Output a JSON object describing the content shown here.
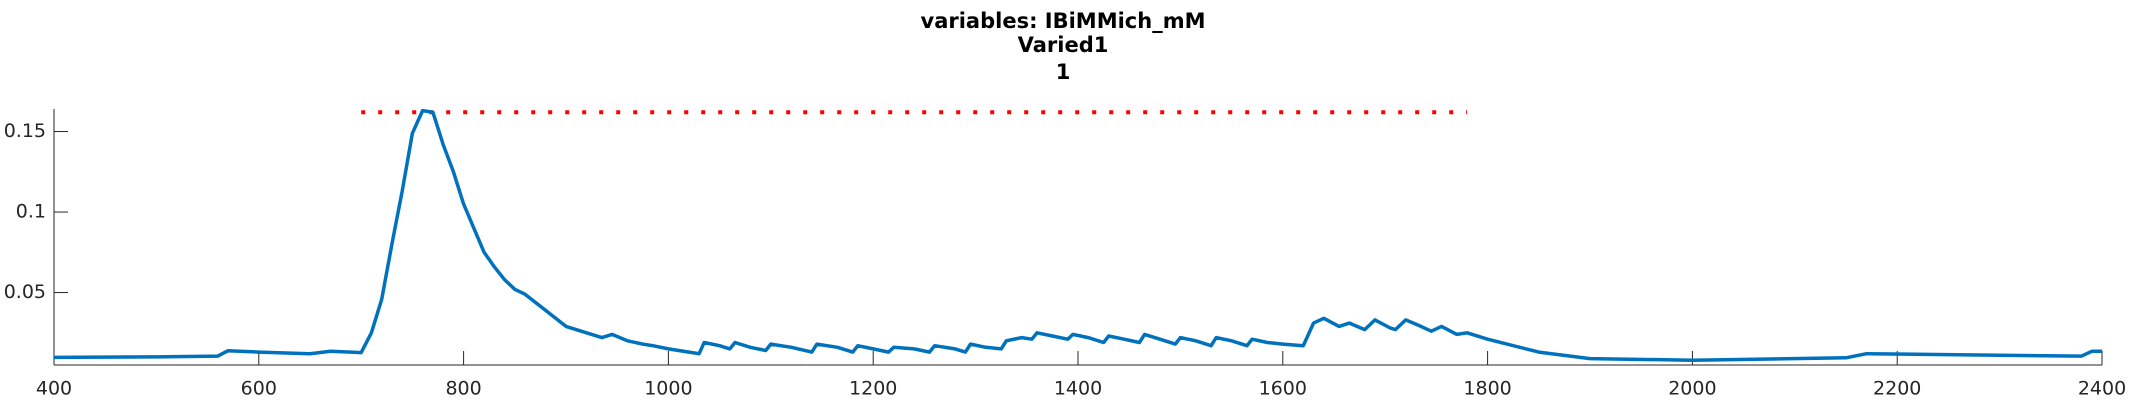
{
  "chart_data": {
    "type": "line",
    "title": "variables: IBiMMich_mM",
    "subtitle": "Varied1",
    "subtitle2": "1",
    "x": [
      400,
      500,
      560,
      570,
      600,
      650,
      670,
      690,
      700,
      710,
      720,
      730,
      740,
      750,
      760,
      770,
      780,
      790,
      800,
      810,
      820,
      830,
      840,
      850,
      860,
      880,
      900,
      920,
      935,
      945,
      960,
      975,
      985,
      1000,
      1020,
      1030,
      1035,
      1050,
      1060,
      1065,
      1080,
      1095,
      1100,
      1120,
      1140,
      1145,
      1165,
      1180,
      1185,
      1200,
      1215,
      1220,
      1240,
      1255,
      1260,
      1280,
      1290,
      1295,
      1310,
      1325,
      1330,
      1345,
      1355,
      1360,
      1375,
      1390,
      1395,
      1410,
      1425,
      1430,
      1445,
      1460,
      1465,
      1480,
      1495,
      1500,
      1515,
      1530,
      1535,
      1550,
      1565,
      1570,
      1585,
      1600,
      1620,
      1630,
      1640,
      1655,
      1665,
      1680,
      1690,
      1705,
      1710,
      1720,
      1735,
      1745,
      1755,
      1770,
      1780,
      1800,
      1850,
      1900,
      2000,
      2150,
      2170,
      2300,
      2380,
      2390,
      2400
    ],
    "series": [
      {
        "name": "IBiMMich_mM",
        "color": "#0072bd",
        "values": [
          0.0097,
          0.01,
          0.0105,
          0.0139,
          0.013,
          0.012,
          0.0135,
          0.013,
          0.0127,
          0.025,
          0.0458,
          0.08,
          0.113,
          0.149,
          0.163,
          0.162,
          0.142,
          0.125,
          0.105,
          0.09,
          0.075,
          0.066,
          0.058,
          0.052,
          0.049,
          0.039,
          0.029,
          0.025,
          0.022,
          0.024,
          0.02,
          0.018,
          0.017,
          0.015,
          0.013,
          0.012,
          0.019,
          0.017,
          0.015,
          0.019,
          0.016,
          0.014,
          0.018,
          0.016,
          0.013,
          0.018,
          0.016,
          0.013,
          0.017,
          0.015,
          0.013,
          0.016,
          0.015,
          0.013,
          0.017,
          0.015,
          0.013,
          0.018,
          0.016,
          0.015,
          0.02,
          0.022,
          0.021,
          0.025,
          0.023,
          0.021,
          0.024,
          0.022,
          0.019,
          0.023,
          0.021,
          0.019,
          0.024,
          0.021,
          0.018,
          0.022,
          0.02,
          0.017,
          0.022,
          0.02,
          0.017,
          0.021,
          0.019,
          0.018,
          0.017,
          0.031,
          0.034,
          0.029,
          0.031,
          0.027,
          0.033,
          0.028,
          0.027,
          0.033,
          0.029,
          0.026,
          0.029,
          0.024,
          0.025,
          0.021,
          0.013,
          0.009,
          0.008,
          0.0095,
          0.012,
          0.011,
          0.0105,
          0.0135,
          0.0135
        ]
      }
    ],
    "reference_line": {
      "y": 0.162,
      "x": [
        700,
        1780
      ],
      "color": "#ff0000"
    },
    "xlim": [
      400,
      2400
    ],
    "xticks": [
      400,
      600,
      800,
      1000,
      1200,
      1400,
      1600,
      1800,
      2000,
      2200,
      2400
    ],
    "ylim": [
      0.005,
      0.164
    ],
    "yticks": [
      0.05,
      0.1,
      0.15
    ]
  }
}
